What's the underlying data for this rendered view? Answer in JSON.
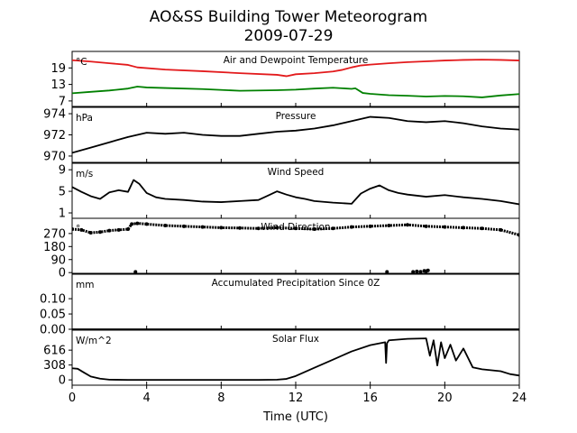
{
  "title_line1": "AO&SS Building Tower Meteorogram",
  "title_line2": "2009-07-29",
  "xlabel": "Time (UTC)",
  "x_ticks": [
    0,
    4,
    8,
    12,
    16,
    20,
    24
  ],
  "xlim": [
    0,
    24
  ],
  "chart_data": [
    {
      "type": "line",
      "title": "Air and Dewpoint Temperature",
      "unit": "°C",
      "ylim": [
        5,
        25
      ],
      "y_ticks": [
        7,
        13,
        19
      ],
      "series": [
        {
          "color": "#e31a1c",
          "x": [
            0,
            1,
            2,
            3,
            3.5,
            5,
            7,
            9,
            11,
            11.5,
            12,
            13,
            14,
            14.5,
            15,
            15.5,
            16,
            17,
            18,
            19,
            20,
            21,
            22,
            23,
            24
          ],
          "y": [
            21.8,
            21.3,
            20.7,
            20.1,
            19.2,
            18.4,
            17.8,
            17.1,
            16.5,
            16.0,
            16.7,
            17.1,
            17.7,
            18.3,
            19.2,
            19.9,
            20.2,
            20.7,
            21.1,
            21.4,
            21.7,
            21.9,
            22.0,
            21.9,
            21.7
          ]
        },
        {
          "color": "#008000",
          "x": [
            0,
            1,
            2,
            3,
            3.5,
            4,
            5,
            7,
            9,
            11,
            12,
            13,
            14,
            15,
            15.2,
            15.6,
            16,
            17,
            18,
            19,
            20,
            21,
            22,
            23,
            24
          ],
          "y": [
            9.8,
            10.3,
            10.8,
            11.5,
            12.2,
            11.9,
            11.7,
            11.3,
            10.7,
            10.9,
            11.1,
            11.5,
            11.8,
            11.4,
            11.6,
            9.9,
            9.6,
            9.1,
            8.9,
            8.6,
            8.8,
            8.7,
            8.3,
            9.0,
            9.5
          ]
        }
      ]
    },
    {
      "type": "line",
      "title": "Pressure",
      "unit": "hPa",
      "ylim": [
        969.4,
        974.6
      ],
      "y_ticks": [
        970,
        972,
        974
      ],
      "series": [
        {
          "color": "#000000",
          "x": [
            0,
            1,
            2,
            3,
            4,
            5,
            6,
            7,
            8,
            9,
            10,
            11,
            12,
            13,
            14,
            15,
            16,
            17,
            18,
            19,
            20,
            21,
            22,
            23,
            24
          ],
          "y": [
            970.3,
            970.8,
            971.3,
            971.8,
            972.2,
            972.1,
            972.2,
            972.0,
            971.9,
            971.9,
            972.1,
            972.3,
            972.4,
            972.6,
            972.9,
            973.3,
            973.7,
            973.6,
            973.3,
            973.2,
            973.3,
            973.1,
            972.8,
            972.6,
            972.5
          ]
        }
      ]
    },
    {
      "type": "line",
      "title": "Wind Speed",
      "unit": "m/s",
      "ylim": [
        0,
        10.2
      ],
      "y_ticks": [
        1,
        5,
        9
      ],
      "series": [
        {
          "color": "#000000",
          "x": [
            0,
            0.5,
            1,
            1.5,
            2,
            2.5,
            3,
            3.3,
            3.6,
            4,
            4.5,
            5,
            6,
            7,
            8,
            9,
            10,
            10.5,
            11,
            11.5,
            12,
            12.5,
            13,
            14,
            15,
            15.5,
            16,
            16.5,
            17,
            17.5,
            18,
            19,
            20,
            21,
            22,
            23,
            24
          ],
          "y": [
            5.8,
            4.9,
            4.1,
            3.6,
            4.8,
            5.2,
            4.9,
            7.1,
            6.4,
            4.7,
            3.9,
            3.6,
            3.4,
            3.1,
            3.0,
            3.2,
            3.4,
            4.2,
            5.0,
            4.4,
            3.9,
            3.6,
            3.2,
            2.9,
            2.7,
            4.6,
            5.5,
            6.1,
            5.2,
            4.7,
            4.4,
            4.0,
            4.3,
            3.9,
            3.6,
            3.2,
            2.6
          ]
        }
      ]
    },
    {
      "type": "scatter",
      "title": "Wind Direction",
      "unit": "°",
      "ylim": [
        -5,
        375
      ],
      "y_ticks": [
        0,
        90,
        180,
        270
      ],
      "series": [
        {
          "color": "#000000",
          "x": [
            0,
            0.5,
            1,
            1.5,
            2,
            2.5,
            3,
            3.2,
            3.5,
            4,
            5,
            6,
            7,
            8,
            9,
            10,
            11,
            12,
            13,
            14,
            15,
            16,
            17,
            18,
            19,
            20,
            21,
            22,
            23,
            24
          ],
          "y": [
            300,
            295,
            275,
            280,
            290,
            295,
            300,
            335,
            340,
            335,
            325,
            320,
            315,
            310,
            308,
            305,
            310,
            305,
            300,
            305,
            315,
            320,
            325,
            330,
            320,
            315,
            310,
            305,
            295,
            260
          ]
        },
        {
          "color": "#000000",
          "x": [
            3.4,
            16.9,
            18.3,
            18.5,
            18.7,
            18.9,
            19.0,
            19.1
          ],
          "y": [
            5,
            5,
            5,
            8,
            6,
            12,
            10,
            15
          ]
        }
      ]
    },
    {
      "type": "line",
      "title": "Accumulated Precipitation Since 0Z",
      "unit": "mm",
      "ylim": [
        0,
        0.18
      ],
      "y_ticks": [
        0.0,
        0.05,
        0.1
      ],
      "y_tick_labels": [
        "0.00",
        "0.05",
        "0.10"
      ],
      "series": [
        {
          "color": "#000000",
          "x": [
            0,
            24
          ],
          "y": [
            0,
            0
          ]
        }
      ]
    },
    {
      "type": "line",
      "title": "Solar Flux",
      "unit": "W/m^2",
      "ylim": [
        -110,
        1030
      ],
      "y_ticks": [
        0,
        308,
        616
      ],
      "series": [
        {
          "color": "#000000",
          "x": [
            0,
            0.3,
            0.6,
            1,
            1.5,
            2,
            3,
            5,
            7,
            9,
            10,
            11,
            11.5,
            12,
            13,
            14,
            15,
            16,
            16.8,
            16.85,
            16.9,
            17,
            18,
            19,
            19.2,
            19.4,
            19.6,
            19.8,
            20,
            20.3,
            20.6,
            21,
            21.5,
            22,
            23,
            23.5,
            24
          ],
          "y": [
            240,
            230,
            160,
            70,
            25,
            5,
            0,
            0,
            0,
            0,
            0,
            5,
            20,
            80,
            250,
            420,
            590,
            720,
            780,
            350,
            760,
            820,
            850,
            860,
            500,
            820,
            300,
            780,
            450,
            730,
            400,
            650,
            260,
            220,
            180,
            120,
            90
          ]
        }
      ]
    }
  ]
}
